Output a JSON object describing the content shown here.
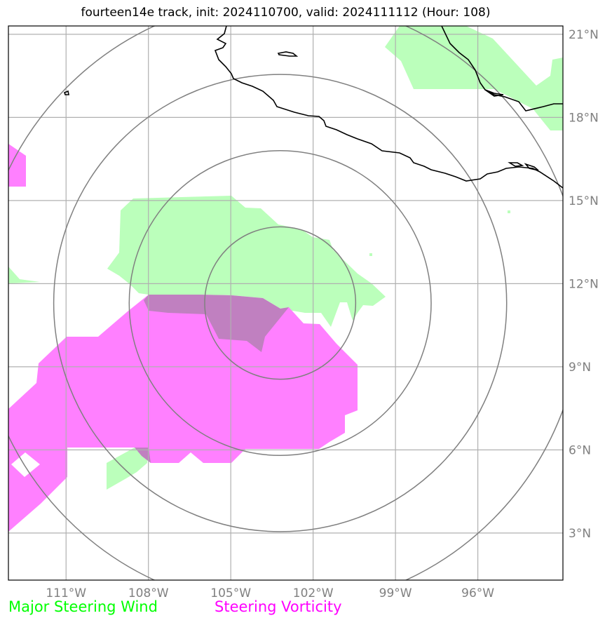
{
  "title": "fourteen14e track, init: 2024110700, valid: 2024111112 (Hour: 108)",
  "map": {
    "lon_range": [
      -113.1,
      -92.9
    ],
    "lat_range": [
      1.3,
      21.3
    ],
    "lon_ticks": [
      {
        "value": -111,
        "label": "111°W"
      },
      {
        "value": -108,
        "label": "108°W"
      },
      {
        "value": -105,
        "label": "105°W"
      },
      {
        "value": -102,
        "label": "102°W"
      },
      {
        "value": -99,
        "label": "99°W"
      },
      {
        "value": -96,
        "label": "96°W"
      }
    ],
    "lat_ticks": [
      {
        "value": 21,
        "label": "21°N"
      },
      {
        "value": 18,
        "label": "18°N"
      },
      {
        "value": 15,
        "label": "15°N"
      },
      {
        "value": 12,
        "label": "12°N"
      },
      {
        "value": 9,
        "label": "9°N"
      },
      {
        "value": 6,
        "label": "6°N"
      },
      {
        "value": 3,
        "label": "3°N"
      }
    ],
    "storm_center": {
      "lon": -103.2,
      "lat": 11.3
    },
    "range_rings_deg": [
      2.75,
      5.5,
      8.25,
      11.0
    ],
    "colors": {
      "wind": "#bbffbb",
      "vorticity": "#ff80ff",
      "overlap": "#c080c0",
      "rings": "#808080",
      "grid": "#b0b0b0",
      "coast": "#000000"
    }
  },
  "legend": {
    "wind_label": "Major Steering Wind",
    "wind_color": "#00ff00",
    "vorticity_label": "Steering Vorticity",
    "vorticity_color": "#ff00ff"
  }
}
